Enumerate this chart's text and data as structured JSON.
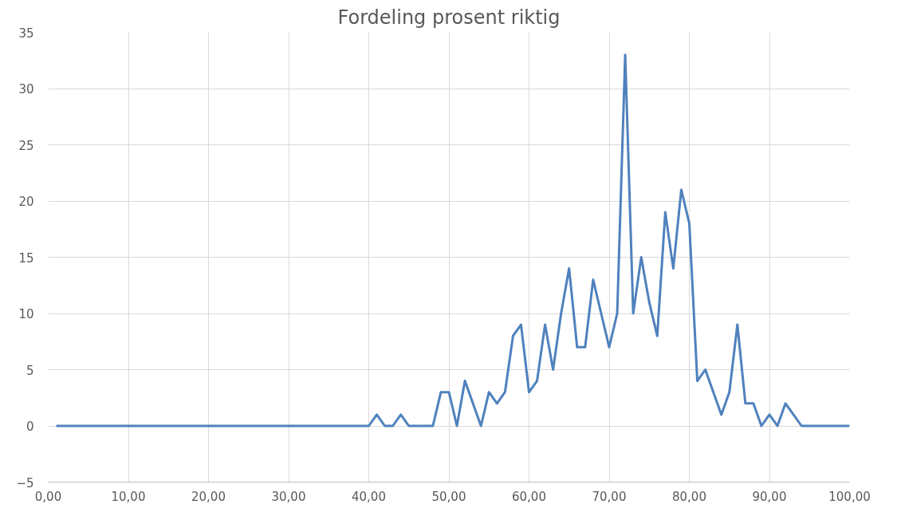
{
  "chart_data": {
    "type": "line",
    "title": "Fordeling prosent riktig",
    "x": [
      1,
      2,
      3,
      4,
      5,
      6,
      7,
      8,
      9,
      10,
      11,
      12,
      13,
      14,
      15,
      16,
      17,
      18,
      19,
      20,
      21,
      22,
      23,
      24,
      25,
      26,
      27,
      28,
      29,
      30,
      31,
      32,
      33,
      34,
      35,
      36,
      37,
      38,
      39,
      40,
      41,
      42,
      43,
      44,
      45,
      46,
      47,
      48,
      49,
      50,
      51,
      52,
      53,
      54,
      55,
      56,
      57,
      58,
      59,
      60,
      61,
      62,
      63,
      64,
      65,
      66,
      67,
      68,
      69,
      70,
      71,
      72,
      73,
      74,
      75,
      76,
      77,
      78,
      79,
      80,
      81,
      82,
      83,
      84,
      85,
      86,
      87,
      88,
      89,
      90,
      91,
      92,
      93,
      94,
      95,
      96,
      97,
      98,
      99,
      100
    ],
    "series": [
      {
        "color": "#4f81bd",
        "values": [
          0,
          0,
          0,
          0,
          0,
          0,
          0,
          0,
          0,
          0,
          0,
          0,
          0,
          0,
          0,
          0,
          0,
          0,
          0,
          0,
          0,
          0,
          0,
          0,
          0,
          0,
          0,
          0,
          0,
          0,
          0,
          0,
          0,
          0,
          0,
          0,
          0,
          0,
          0,
          0,
          1,
          0,
          0,
          1,
          0,
          0,
          0,
          0,
          3,
          3,
          0,
          4,
          2,
          0,
          3,
          2,
          3,
          8,
          9,
          3,
          4,
          9,
          5,
          10,
          14,
          7,
          7,
          13,
          10,
          7,
          10,
          33,
          10,
          15,
          11,
          8,
          19,
          14,
          21,
          18,
          4,
          5,
          3,
          1,
          3,
          9,
          2,
          2,
          0,
          1,
          0,
          2,
          1,
          0,
          0,
          0,
          0,
          0,
          0,
          0
        ]
      }
    ],
    "xlim": [
      0,
      100
    ],
    "ylim": [
      -5,
      35
    ],
    "xticks": [
      {
        "value": 0,
        "label": "0,00"
      },
      {
        "value": 10,
        "label": "10,00"
      },
      {
        "value": 20,
        "label": "20,00"
      },
      {
        "value": 30,
        "label": "30,00"
      },
      {
        "value": 40,
        "label": "40,00"
      },
      {
        "value": 50,
        "label": "50,00"
      },
      {
        "value": 60,
        "label": "60,00"
      },
      {
        "value": 70,
        "label": "70,00"
      },
      {
        "value": 80,
        "label": "80,00"
      },
      {
        "value": 90,
        "label": "90,00"
      },
      {
        "value": 100,
        "label": "100,00"
      }
    ],
    "yticks": [
      -5,
      0,
      5,
      10,
      15,
      20,
      25,
      30,
      35
    ],
    "grid": true,
    "marker": "none",
    "line_style": "solid"
  }
}
